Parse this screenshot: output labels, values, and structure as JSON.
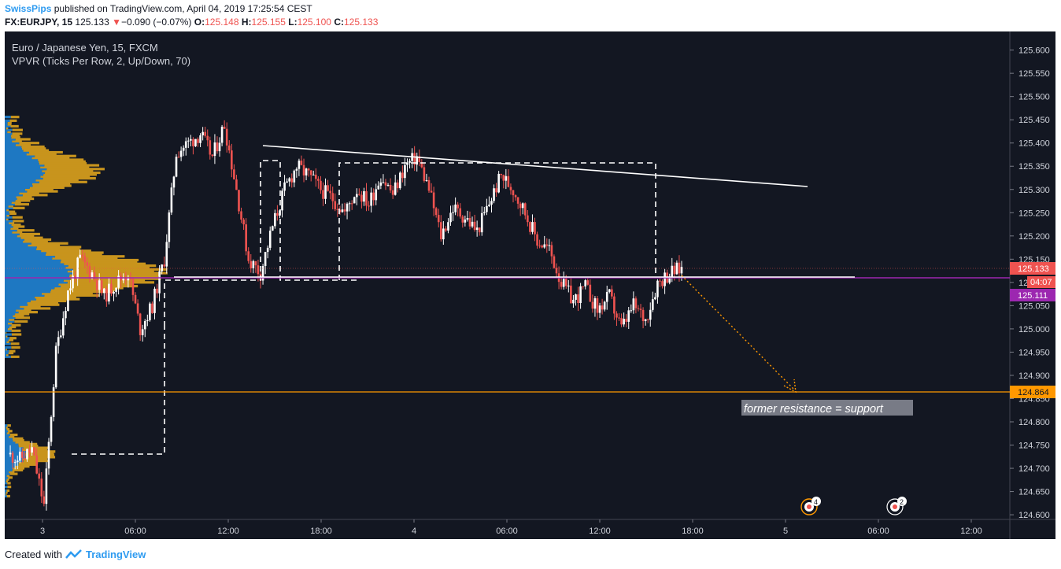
{
  "header": {
    "user": "SwissPips",
    "published": "published on TradingView.com, April 04, 2019 17:25:54 CEST",
    "symbol": "FX:EURJPY, 15",
    "last": "125.133",
    "change_arrow": "▼",
    "change": "−0.090 (−0.07%)",
    "o_label": "O:",
    "o_value": "125.148",
    "h_label": "H:",
    "h_value": "125.155",
    "l_label": "L:",
    "l_value": "125.100",
    "c_label": "C:",
    "c_value": "125.133"
  },
  "legend": {
    "line1": "Euro / Japanese Yen, 15, FXCM",
    "line2": "VPVR (Ticks Per Row, 2, Up/Down, 70)"
  },
  "footer": {
    "created": "Created with",
    "brand": "TradingView"
  },
  "colors": {
    "background": "#131722",
    "up": "#ffffff",
    "down": "#ef5350",
    "vpvr_up": "#1e78c2",
    "vpvr_down": "#c8941d",
    "poc": "#9c27b0",
    "support": "#ff9800",
    "grid": "#1e222d",
    "text": "#b2b5be"
  },
  "chart_data": {
    "type": "candlestick",
    "instrument": "FX:EURJPY",
    "timeframe": "15",
    "ylim": [
      124.59,
      125.64
    ],
    "yticks": [
      "125.600",
      "125.550",
      "125.500",
      "125.450",
      "125.400",
      "125.350",
      "125.300",
      "125.250",
      "125.200",
      "125.150",
      "125.100",
      "125.050",
      "125.000",
      "124.950",
      "124.900",
      "124.850",
      "124.800",
      "124.750",
      "124.700",
      "124.650",
      "124.600"
    ],
    "xticks": [
      "3",
      "06:00",
      "12:00",
      "18:00",
      "4",
      "06:00",
      "12:00",
      "18:00",
      "5",
      "06:00",
      "12:00"
    ],
    "price_tags": [
      {
        "label": "125.133",
        "color": "#ef5350"
      },
      {
        "label": "04:07",
        "color": "#ef5350"
      },
      {
        "label": "125.111",
        "color": "#9c27b0"
      },
      {
        "label": "124.864",
        "color": "#ff9800"
      }
    ],
    "annotation": "former resistance = support",
    "support_level": 124.864,
    "poc_level": 125.111,
    "event_badges": [
      "4",
      "2"
    ],
    "path_points": [
      124.73,
      124.72,
      124.74,
      124.62,
      124.95,
      125.08,
      125.15,
      125.12,
      125.07,
      125.1,
      125.12,
      125.0,
      125.05,
      125.15,
      125.38,
      125.4,
      125.42,
      125.37,
      125.44,
      125.3,
      125.15,
      125.12,
      125.22,
      125.3,
      125.35,
      125.33,
      125.3,
      125.28,
      125.25,
      125.3,
      125.27,
      125.33,
      125.29,
      125.35,
      125.37,
      125.3,
      125.2,
      125.26,
      125.24,
      125.21,
      125.27,
      125.33,
      125.3,
      125.25,
      125.19,
      125.17,
      125.1,
      125.06,
      125.09,
      125.04,
      125.07,
      125.0,
      125.05,
      125.02,
      125.1,
      125.12,
      125.13
    ]
  }
}
